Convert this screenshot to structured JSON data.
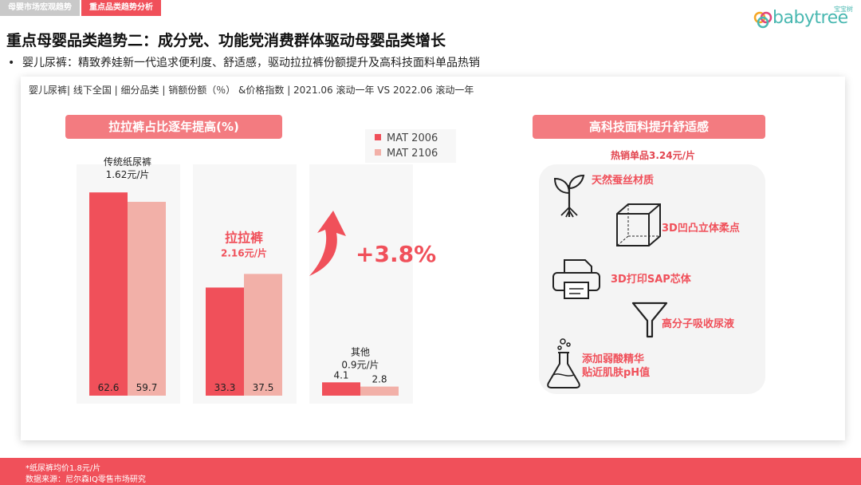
{
  "tabs": [
    {
      "label": "母婴市场宏观趋势"
    },
    {
      "label": "重点品类趋势分析"
    }
  ],
  "logo": {
    "brand": "babytree",
    "cn": "宝宝树"
  },
  "title": "重点母婴品类趋势二：成分党、功能党消费群体驱动母婴品类增长",
  "bullet": "婴儿尿裤：精致养娃新一代追求便利度、舒适感，驱动拉拉裤份额提升及高科技面料单品热销",
  "source_line": "婴儿尿裤| 线下全国 | 细分品类 | 销额份额（％） &价格指数 | 2021.06 滚动一年 VS 2022.06 滚动一年",
  "left_pill": "拉拉裤占比逐年提高(%)",
  "right_pill": "高科技面料提升舒适感",
  "hot_sale": "热销单品3.24元/片",
  "growth_label": "+3.8%",
  "colors": {
    "mat2006": "#f0505a",
    "mat2106": "#f2b0a8",
    "accent": "#f0505a"
  },
  "chart_data": {
    "type": "bar",
    "categories": [
      "传统纸尿裤",
      "拉拉裤",
      "其他"
    ],
    "category_prices": [
      "1.62元/片",
      "2.16元/片",
      "0.9元/片"
    ],
    "series": [
      {
        "name": "MAT 2006",
        "values": [
          62.6,
          33.3,
          4.1
        ]
      },
      {
        "name": "MAT 2106",
        "values": [
          59.7,
          37.5,
          2.8
        ]
      }
    ],
    "ylim": [
      0,
      70
    ],
    "legend_position": "top-right"
  },
  "features": [
    {
      "label": "天然蚕丝材质",
      "icon": "plant-icon"
    },
    {
      "label": "3D凹凸立体柔点",
      "icon": "cube-icon"
    },
    {
      "label": "3D打印SAP芯体",
      "icon": "printer-icon"
    },
    {
      "label": "高分子吸收尿液",
      "icon": "funnel-icon"
    },
    {
      "label": "添加弱酸精华\n贴近肌肤pH值",
      "icon": "flask-icon"
    }
  ],
  "footer": {
    "note": "*纸尿裤均价1.8元/片",
    "source": "数据来源：尼尔森IQ零售市场研究"
  }
}
